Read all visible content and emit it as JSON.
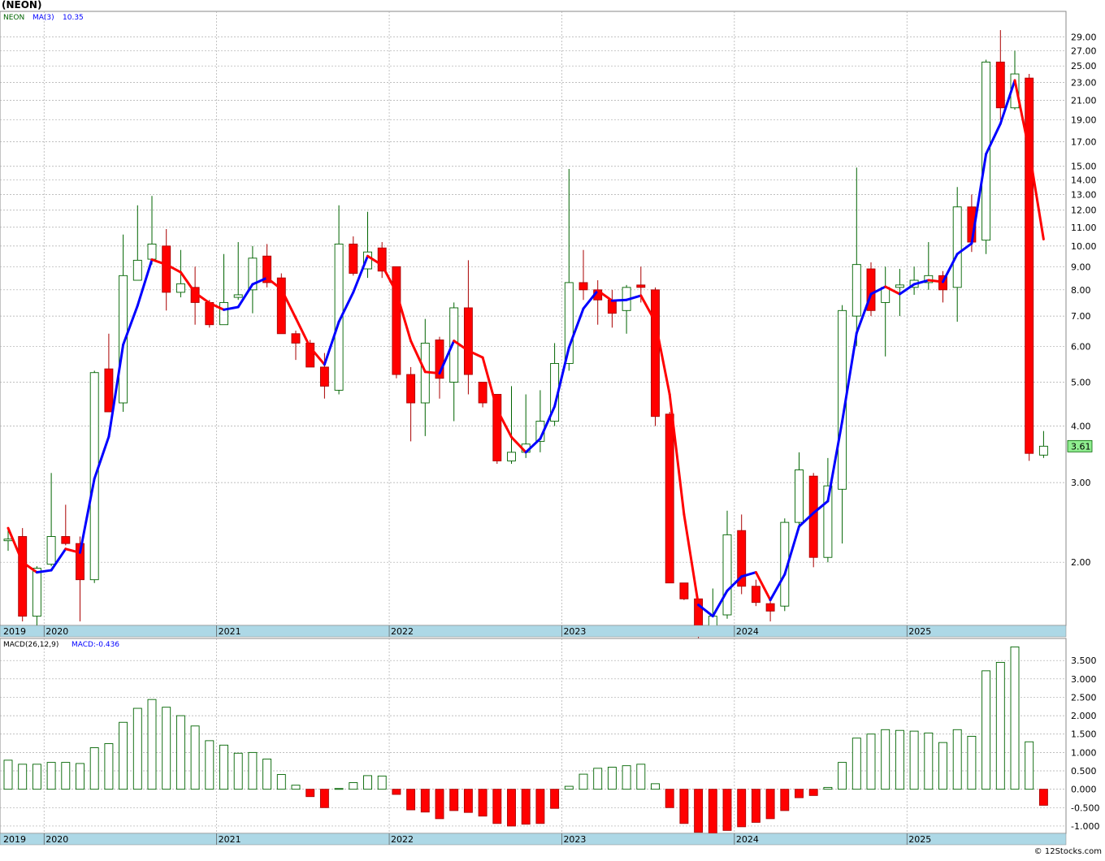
{
  "chart_data": [
    {
      "type": "candlestick",
      "title": "(NEON)",
      "ticker_label": "NEON",
      "ma_label": "MA(3)",
      "ma_value": "10.35",
      "last_price_label": "3.61",
      "y_scale": "log",
      "ylim": [
        1.45,
        33
      ],
      "grid": true,
      "yticks": [
        2.0,
        3.0,
        4.0,
        5.0,
        6.0,
        7.0,
        8.0,
        9.0,
        10.0,
        11.0,
        12.0,
        13.0,
        14.0,
        15.0,
        17.0,
        19.0,
        21.0,
        23.0,
        25.0,
        27.0,
        29.0
      ],
      "ytick_labels": [
        "2.00",
        "3.00",
        "4.00",
        "5.00",
        "6.00",
        "7.00",
        "8.00",
        "9.00",
        "10.00",
        "11.00",
        "12.00",
        "13.00",
        "14.00",
        "15.00",
        "17.00",
        "19.00",
        "21.00",
        "23.00",
        "25.00",
        "27.00",
        "29.00"
      ],
      "year_labels": [
        "2019",
        "2020",
        "2021",
        "2022",
        "2023",
        "2024",
        "2025"
      ],
      "candles": [
        {
          "o": 2.25,
          "h": 2.38,
          "l": 2.12,
          "c": 2.25
        },
        {
          "o": 2.28,
          "h": 2.38,
          "l": 1.48,
          "c": 1.52
        },
        {
          "o": 1.52,
          "h": 1.96,
          "l": 1.38,
          "c": 1.94
        },
        {
          "o": 1.98,
          "h": 3.15,
          "l": 1.96,
          "c": 2.28
        },
        {
          "o": 2.28,
          "h": 2.68,
          "l": 2.18,
          "c": 2.2
        },
        {
          "o": 2.2,
          "h": 2.28,
          "l": 1.48,
          "c": 1.83
        },
        {
          "o": 1.83,
          "h": 5.3,
          "l": 1.8,
          "c": 5.25
        },
        {
          "o": 5.35,
          "h": 6.4,
          "l": 4.3,
          "c": 4.3
        },
        {
          "o": 4.5,
          "h": 10.6,
          "l": 4.3,
          "c": 8.6
        },
        {
          "o": 8.4,
          "h": 12.3,
          "l": 8.4,
          "c": 9.3
        },
        {
          "o": 9.35,
          "h": 12.9,
          "l": 9.1,
          "c": 10.1
        },
        {
          "o": 10.0,
          "h": 10.9,
          "l": 7.2,
          "c": 7.9
        },
        {
          "o": 7.9,
          "h": 9.8,
          "l": 7.7,
          "c": 8.25
        },
        {
          "o": 8.1,
          "h": 9.0,
          "l": 6.7,
          "c": 7.5
        },
        {
          "o": 7.5,
          "h": 7.6,
          "l": 6.6,
          "c": 6.7
        },
        {
          "o": 6.7,
          "h": 9.6,
          "l": 6.7,
          "c": 7.5
        },
        {
          "o": 7.7,
          "h": 10.2,
          "l": 7.6,
          "c": 7.8
        },
        {
          "o": 8.0,
          "h": 10.0,
          "l": 7.1,
          "c": 9.4
        },
        {
          "o": 9.5,
          "h": 10.1,
          "l": 8.1,
          "c": 8.3
        },
        {
          "o": 8.5,
          "h": 8.7,
          "l": 6.4,
          "c": 6.4
        },
        {
          "o": 6.4,
          "h": 6.5,
          "l": 5.6,
          "c": 6.1
        },
        {
          "o": 6.1,
          "h": 6.2,
          "l": 5.4,
          "c": 5.4
        },
        {
          "o": 5.4,
          "h": 5.8,
          "l": 4.6,
          "c": 4.9
        },
        {
          "o": 4.8,
          "h": 12.3,
          "l": 4.7,
          "c": 10.1
        },
        {
          "o": 10.1,
          "h": 10.5,
          "l": 8.6,
          "c": 8.7
        },
        {
          "o": 8.9,
          "h": 11.9,
          "l": 8.5,
          "c": 9.7
        },
        {
          "o": 9.9,
          "h": 10.2,
          "l": 8.5,
          "c": 8.8
        },
        {
          "o": 9.0,
          "h": 9.0,
          "l": 5.1,
          "c": 5.2
        },
        {
          "o": 5.2,
          "h": 5.4,
          "l": 3.7,
          "c": 4.5
        },
        {
          "o": 4.5,
          "h": 6.9,
          "l": 3.8,
          "c": 6.1
        },
        {
          "o": 6.2,
          "h": 6.3,
          "l": 4.6,
          "c": 5.1
        },
        {
          "o": 5.0,
          "h": 7.5,
          "l": 4.1,
          "c": 7.3
        },
        {
          "o": 7.3,
          "h": 9.3,
          "l": 4.7,
          "c": 5.2
        },
        {
          "o": 5.0,
          "h": 5.0,
          "l": 4.4,
          "c": 4.5
        },
        {
          "o": 4.7,
          "h": 4.7,
          "l": 3.3,
          "c": 3.35
        },
        {
          "o": 3.35,
          "h": 4.9,
          "l": 3.3,
          "c": 3.5
        },
        {
          "o": 3.5,
          "h": 4.7,
          "l": 3.4,
          "c": 3.65
        },
        {
          "o": 3.7,
          "h": 4.8,
          "l": 3.5,
          "c": 4.1
        },
        {
          "o": 4.1,
          "h": 6.1,
          "l": 4.0,
          "c": 5.5
        },
        {
          "o": 5.5,
          "h": 14.8,
          "l": 5.3,
          "c": 8.3
        },
        {
          "o": 8.3,
          "h": 9.8,
          "l": 7.6,
          "c": 8.0
        },
        {
          "o": 8.0,
          "h": 8.4,
          "l": 6.7,
          "c": 7.6
        },
        {
          "o": 7.6,
          "h": 8.0,
          "l": 6.6,
          "c": 7.1
        },
        {
          "o": 7.2,
          "h": 8.2,
          "l": 6.4,
          "c": 8.1
        },
        {
          "o": 8.2,
          "h": 9.0,
          "l": 7.5,
          "c": 8.1
        },
        {
          "o": 8.0,
          "h": 8.1,
          "l": 4.0,
          "c": 4.2
        },
        {
          "o": 4.25,
          "h": 4.3,
          "l": 1.8,
          "c": 1.8
        },
        {
          "o": 1.8,
          "h": 1.8,
          "l": 1.65,
          "c": 1.66
        },
        {
          "o": 1.66,
          "h": 1.66,
          "l": 1.35,
          "c": 1.38
        },
        {
          "o": 1.4,
          "h": 1.75,
          "l": 1.38,
          "c": 1.52
        },
        {
          "o": 1.53,
          "h": 2.6,
          "l": 1.5,
          "c": 2.3
        },
        {
          "o": 2.35,
          "h": 2.55,
          "l": 1.7,
          "c": 1.77
        },
        {
          "o": 1.77,
          "h": 1.83,
          "l": 1.6,
          "c": 1.63
        },
        {
          "o": 1.62,
          "h": 1.65,
          "l": 1.48,
          "c": 1.56
        },
        {
          "o": 1.6,
          "h": 2.5,
          "l": 1.56,
          "c": 2.45
        },
        {
          "o": 2.45,
          "h": 3.5,
          "l": 2.4,
          "c": 3.2
        },
        {
          "o": 3.1,
          "h": 3.15,
          "l": 1.95,
          "c": 2.05
        },
        {
          "o": 2.05,
          "h": 3.4,
          "l": 2.0,
          "c": 2.95
        },
        {
          "o": 2.9,
          "h": 7.4,
          "l": 2.2,
          "c": 7.2
        },
        {
          "o": 7.0,
          "h": 14.9,
          "l": 6.0,
          "c": 9.1
        },
        {
          "o": 8.9,
          "h": 9.2,
          "l": 7.0,
          "c": 7.2
        },
        {
          "o": 7.5,
          "h": 9.0,
          "l": 5.7,
          "c": 8.1
        },
        {
          "o": 8.1,
          "h": 8.9,
          "l": 7.0,
          "c": 8.2
        },
        {
          "o": 8.1,
          "h": 9.0,
          "l": 7.8,
          "c": 8.4
        },
        {
          "o": 8.3,
          "h": 10.2,
          "l": 8.0,
          "c": 8.6
        },
        {
          "o": 8.6,
          "h": 8.8,
          "l": 7.5,
          "c": 8.0
        },
        {
          "o": 8.1,
          "h": 13.5,
          "l": 6.8,
          "c": 12.2
        },
        {
          "o": 12.2,
          "h": 13.0,
          "l": 9.7,
          "c": 10.2
        },
        {
          "o": 10.3,
          "h": 25.8,
          "l": 9.6,
          "c": 25.5
        },
        {
          "o": 25.5,
          "h": 30.0,
          "l": 19.0,
          "c": 20.2
        },
        {
          "o": 20.2,
          "h": 27.0,
          "l": 20.0,
          "c": 24.0
        },
        {
          "o": 23.5,
          "h": 24.0,
          "l": 3.35,
          "c": 3.48
        },
        {
          "o": 3.45,
          "h": 3.9,
          "l": 3.4,
          "c": 3.61
        }
      ],
      "ma3": [
        {
          "v": 2.38,
          "up": false
        },
        {
          "v": 2.0,
          "up": false
        },
        {
          "v": 1.9,
          "up": false
        },
        {
          "v": 1.92,
          "up": true
        },
        {
          "v": 2.14,
          "up": true
        },
        {
          "v": 2.1,
          "up": false
        },
        {
          "v": 3.06,
          "up": true
        },
        {
          "v": 3.79,
          "up": true
        },
        {
          "v": 6.05,
          "up": true
        },
        {
          "v": 7.38,
          "up": true
        },
        {
          "v": 9.33,
          "up": true
        },
        {
          "v": 9.1,
          "up": false
        },
        {
          "v": 8.75,
          "up": false
        },
        {
          "v": 7.88,
          "up": false
        },
        {
          "v": 7.48,
          "up": false
        },
        {
          "v": 7.23,
          "up": false
        },
        {
          "v": 7.33,
          "up": true
        },
        {
          "v": 8.23,
          "up": true
        },
        {
          "v": 8.5,
          "up": true
        },
        {
          "v": 8.03,
          "up": false
        },
        {
          "v": 6.93,
          "up": false
        },
        {
          "v": 5.97,
          "up": false
        },
        {
          "v": 5.47,
          "up": false
        },
        {
          "v": 6.8,
          "up": true
        },
        {
          "v": 7.9,
          "up": true
        },
        {
          "v": 9.5,
          "up": true
        },
        {
          "v": 9.07,
          "up": false
        },
        {
          "v": 7.9,
          "up": false
        },
        {
          "v": 6.17,
          "up": false
        },
        {
          "v": 5.27,
          "up": false
        },
        {
          "v": 5.23,
          "up": false
        },
        {
          "v": 6.17,
          "up": true
        },
        {
          "v": 5.87,
          "up": false
        },
        {
          "v": 5.67,
          "up": false
        },
        {
          "v": 4.35,
          "up": false
        },
        {
          "v": 3.78,
          "up": false
        },
        {
          "v": 3.5,
          "up": false
        },
        {
          "v": 3.75,
          "up": true
        },
        {
          "v": 4.42,
          "up": true
        },
        {
          "v": 5.97,
          "up": true
        },
        {
          "v": 7.27,
          "up": true
        },
        {
          "v": 7.97,
          "up": true
        },
        {
          "v": 7.57,
          "up": false
        },
        {
          "v": 7.6,
          "up": true
        },
        {
          "v": 7.77,
          "up": true
        },
        {
          "v": 6.8,
          "up": false
        },
        {
          "v": 4.7,
          "up": false
        },
        {
          "v": 2.55,
          "up": false
        },
        {
          "v": 1.61,
          "up": false
        },
        {
          "v": 1.52,
          "up": true
        },
        {
          "v": 1.73,
          "up": true
        },
        {
          "v": 1.86,
          "up": true
        },
        {
          "v": 1.9,
          "up": true
        },
        {
          "v": 1.65,
          "up": false
        },
        {
          "v": 1.88,
          "up": true
        },
        {
          "v": 2.4,
          "up": true
        },
        {
          "v": 2.57,
          "up": true
        },
        {
          "v": 2.73,
          "up": true
        },
        {
          "v": 4.1,
          "up": true
        },
        {
          "v": 6.42,
          "up": true
        },
        {
          "v": 7.83,
          "up": true
        },
        {
          "v": 8.13,
          "up": true
        },
        {
          "v": 7.83,
          "up": false
        },
        {
          "v": 8.23,
          "up": true
        },
        {
          "v": 8.4,
          "up": true
        },
        {
          "v": 8.33,
          "up": false
        },
        {
          "v": 9.6,
          "up": true
        },
        {
          "v": 10.13,
          "up": true
        },
        {
          "v": 15.97,
          "up": true
        },
        {
          "v": 18.63,
          "up": true
        },
        {
          "v": 23.23,
          "up": true
        },
        {
          "v": 16.23,
          "up": false
        },
        {
          "v": 10.35,
          "up": false
        }
      ]
    },
    {
      "type": "bar",
      "title": "MACD(26,12,9)",
      "value_label": "MACD:-0.436",
      "ylim": [
        -1.2,
        4.1
      ],
      "grid": true,
      "yticks": [
        -1.0,
        -0.5,
        0.0,
        0.5,
        1.0,
        1.5,
        2.0,
        2.5,
        3.0,
        3.5
      ],
      "ytick_labels": [
        "-1.000",
        "-0.500",
        "0.000",
        "0.500",
        "1.000",
        "1.500",
        "2.000",
        "2.500",
        "3.000",
        "3.500"
      ],
      "year_labels": [
        "2019",
        "2020",
        "2021",
        "2022",
        "2023",
        "2024",
        "2025"
      ],
      "positive_color": "#006400",
      "negative_color": "#ff0000",
      "values": [
        0.79,
        0.68,
        0.68,
        0.73,
        0.73,
        0.7,
        1.13,
        1.24,
        1.82,
        2.2,
        2.44,
        2.23,
        2.0,
        1.72,
        1.32,
        1.2,
        0.98,
        1.0,
        0.82,
        0.4,
        0.11,
        -0.2,
        -0.5,
        0.02,
        0.18,
        0.37,
        0.36,
        -0.14,
        -0.56,
        -0.62,
        -0.8,
        -0.58,
        -0.63,
        -0.73,
        -0.93,
        -1.0,
        -0.95,
        -0.93,
        -0.52,
        0.08,
        0.41,
        0.57,
        0.6,
        0.64,
        0.68,
        0.15,
        -0.5,
        -0.93,
        -1.17,
        -1.2,
        -1.12,
        -1.02,
        -0.9,
        -0.8,
        -0.58,
        -0.23,
        -0.17,
        0.05,
        0.73,
        1.39,
        1.5,
        1.62,
        1.6,
        1.58,
        1.53,
        1.27,
        1.62,
        1.44,
        3.22,
        3.45,
        3.87,
        1.29,
        -0.436
      ]
    }
  ],
  "watermark": "© 12Stocks.com",
  "colors": {
    "up_candle_border": "#006400",
    "down_candle": "#ff0000",
    "ma_up": "#0000ff",
    "ma_down": "#ff0000",
    "axis_band": "#add8e6",
    "grid": "#aaaaaa",
    "last_price_box": "#90ee90"
  }
}
